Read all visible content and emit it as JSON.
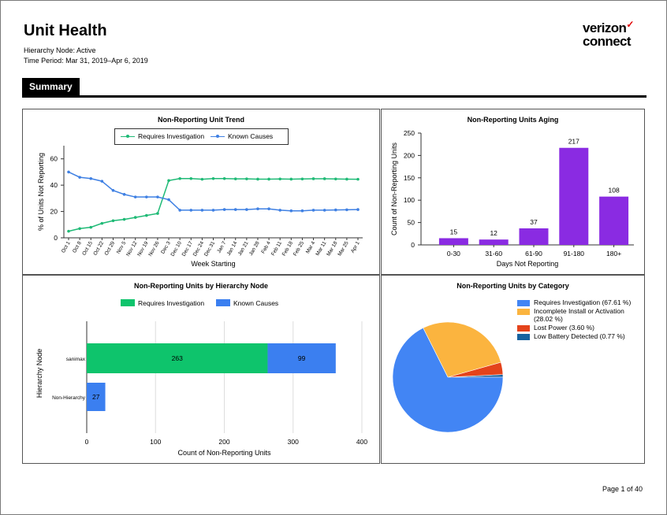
{
  "report": {
    "title": "Unit Health",
    "hierarchy_node": "Hierarchy Node: Active",
    "time_period": "Time Period: Mar 31, 2019–Apr 6, 2019",
    "logo_line1": "verizon",
    "logo_check": "✓",
    "logo_line2": "connect",
    "section": "Summary",
    "page": "Page 1 of 40"
  },
  "colors": {
    "green": "#1fba76",
    "blue": "#3f80e3",
    "purple": "#8a2be2",
    "bar_green": "#0ec46c",
    "bar_blue": "#3b7ff0",
    "pie_blue": "#4285f4",
    "pie_orange": "#fbb43f",
    "pie_red": "#e4431b",
    "pie_navy": "#16629f"
  },
  "chart_data": [
    {
      "type": "line",
      "title": "Non-Reporting Unit Trend",
      "xlabel": "Week Starting",
      "ylabel": "% of Units Not Reporting",
      "ylim": [
        0,
        70
      ],
      "yticks": [
        0,
        20,
        40,
        60
      ],
      "legend": "top-center",
      "categories": [
        "Oct 1",
        "Oct 8",
        "Oct 15",
        "Oct 22",
        "Oct 29",
        "Nov 5",
        "Nov 12",
        "Nov 19",
        "Nov 26",
        "Dec 3",
        "Dec 10",
        "Dec 17",
        "Dec 24",
        "Dec 31",
        "Jan 7",
        "Jan 14",
        "Jan 21",
        "Jan 28",
        "Feb 4",
        "Feb 11",
        "Feb 18",
        "Feb 25",
        "Mar 4",
        "Mar 11",
        "Mar 18",
        "Mar 25",
        "Apr 1"
      ],
      "series": [
        {
          "name": "Requires Investigation",
          "values": [
            5,
            7,
            8,
            11,
            13,
            14,
            15.5,
            17,
            18.5,
            43.5,
            45,
            45,
            44.5,
            45,
            45,
            44.8,
            44.8,
            44.6,
            44.6,
            44.7,
            44.6,
            44.7,
            44.9,
            44.9,
            44.7,
            44.6,
            44.5
          ]
        },
        {
          "name": "Known Causes",
          "values": [
            50,
            46,
            45,
            43,
            36,
            33,
            31,
            31,
            31,
            29,
            21,
            21,
            21,
            21,
            21.5,
            21.5,
            21.5,
            22,
            22,
            21,
            20.5,
            20.5,
            21,
            21,
            21.2,
            21.3,
            21.5
          ]
        }
      ]
    },
    {
      "type": "bar",
      "title": "Non-Reporting Units Aging",
      "xlabel": "Days Not Reporting",
      "ylabel": "Count of Non-Reporting Units",
      "ylim": [
        0,
        250
      ],
      "yticks": [
        0,
        50,
        100,
        150,
        200,
        250
      ],
      "categories": [
        "0-30",
        "31-60",
        "61-90",
        "91-180",
        "180+"
      ],
      "values": [
        15,
        12,
        37,
        217,
        108
      ]
    },
    {
      "type": "bar",
      "orientation": "horizontal",
      "stacked": true,
      "title": "Non-Reporting Units by Hierarchy Node",
      "xlabel": "Count of Non-Reporting Units",
      "ylabel": "Hierarchy Node",
      "xlim": [
        0,
        400
      ],
      "xticks": [
        0,
        100,
        200,
        300,
        400
      ],
      "legend": "top-center",
      "categories": [
        "sanimax",
        "Non-Hierarchy"
      ],
      "series": [
        {
          "name": "Requires Investigation",
          "values": [
            263,
            0
          ]
        },
        {
          "name": "Known Causes",
          "values": [
            99,
            27
          ]
        }
      ]
    },
    {
      "type": "pie",
      "title": "Non-Reporting Units by Category",
      "legend": "right",
      "slices": [
        {
          "label": "Requires Investigation",
          "value": 67.61,
          "legend_text": "Requires Investigation (67.61 %)"
        },
        {
          "label": "Incomplete Install or Activation",
          "value": 28.02,
          "legend_text": "Incomplete Install or Activation (28.02 %)"
        },
        {
          "label": "Lost Power",
          "value": 3.6,
          "legend_text": "Lost Power (3.60 %)"
        },
        {
          "label": "Low Battery Detected",
          "value": 0.77,
          "legend_text": "Low Battery Detected (0.77 %)"
        }
      ]
    }
  ]
}
